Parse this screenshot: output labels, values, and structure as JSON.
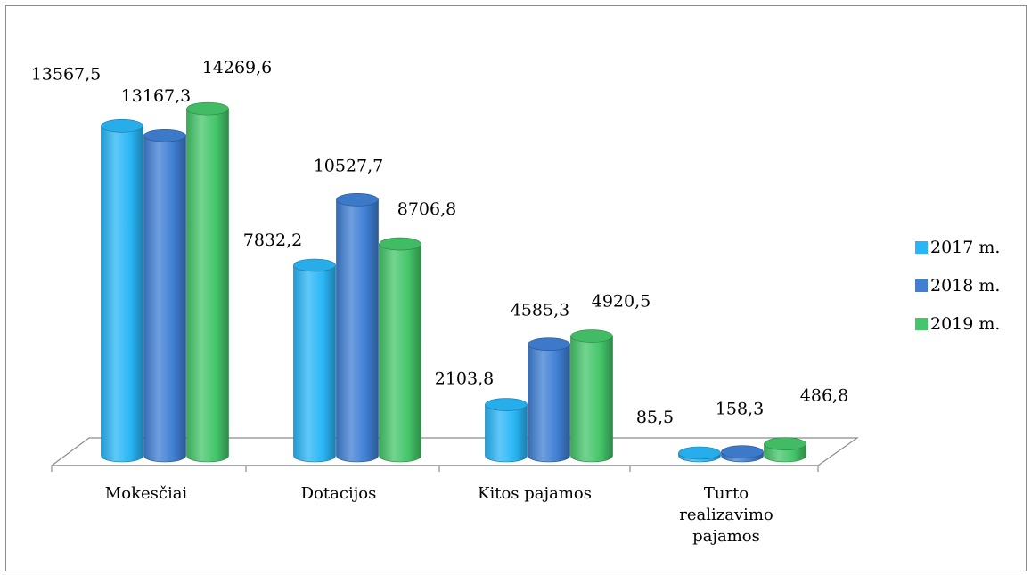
{
  "chart_data": {
    "type": "bar",
    "categories": [
      [
        "Mokesčiai"
      ],
      [
        "Dotacijos"
      ],
      [
        "Kitos pajamos"
      ],
      [
        "Turto",
        "realizavimo",
        "pajamos"
      ]
    ],
    "series": [
      {
        "name": "2017 m.",
        "color": "#29b6f6",
        "values": [
          13567.5,
          7832.2,
          2103.8,
          85.5
        ],
        "labels": [
          "13567,5",
          "7832,2",
          "2103,8",
          "85,5"
        ]
      },
      {
        "name": "2018 m.",
        "color": "#3f7fd4",
        "values": [
          13167.3,
          10527.7,
          4585.3,
          158.3
        ],
        "labels": [
          "13167,3",
          "10527,7",
          "4585,3",
          "158,3"
        ]
      },
      {
        "name": "2019 m.",
        "color": "#44c66a",
        "values": [
          14269.6,
          8706.8,
          4920.5,
          486.8
        ],
        "labels": [
          "14269,6",
          "8706,8",
          "4920,5",
          "486,8"
        ]
      }
    ],
    "ylim": [
      0,
      16000
    ],
    "legend_position": "right",
    "grid": false,
    "style": "3d-cylinder"
  }
}
